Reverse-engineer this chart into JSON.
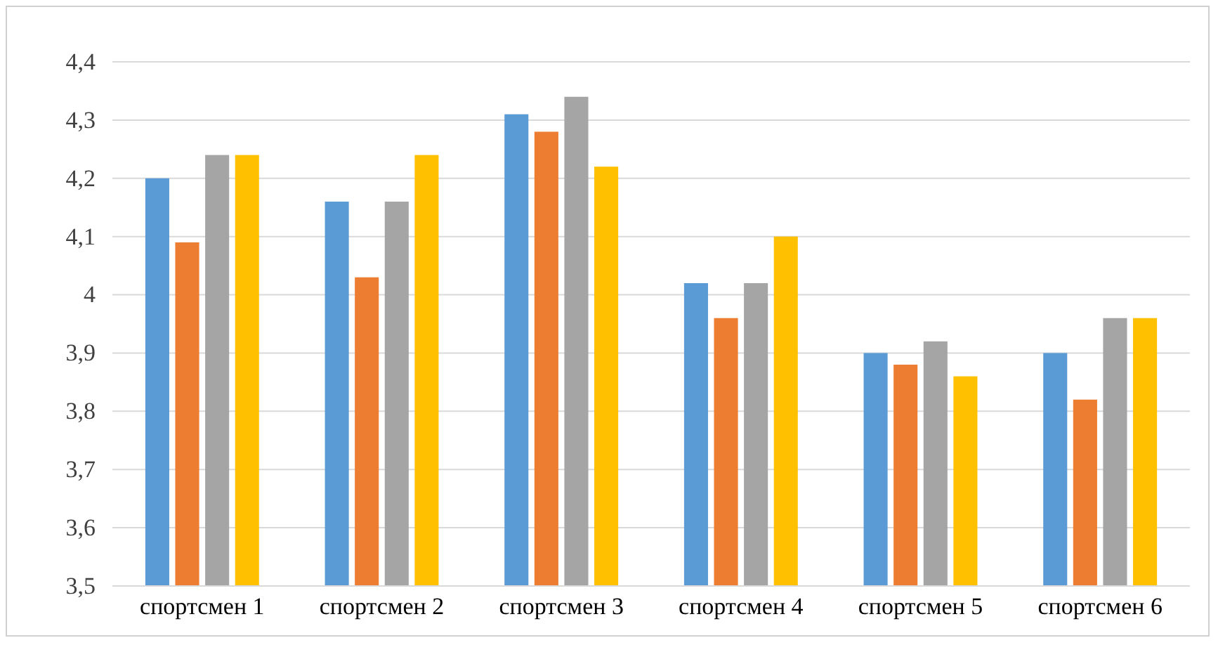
{
  "chart_data": {
    "type": "bar",
    "categories": [
      "спортсмен 1",
      "спортсмен 2",
      "спортсмен 3",
      "спортсмен 4",
      "спортсмен 5",
      "спортсмен 6"
    ],
    "series": [
      {
        "color": "#5b9bd5",
        "values": [
          4.2,
          4.16,
          4.31,
          4.02,
          3.9,
          3.9
        ]
      },
      {
        "color": "#ed7d31",
        "values": [
          4.09,
          4.03,
          4.28,
          3.96,
          3.88,
          3.82
        ]
      },
      {
        "color": "#a5a5a5",
        "values": [
          4.24,
          4.16,
          4.34,
          4.02,
          3.92,
          3.96
        ]
      },
      {
        "color": "#ffc000",
        "values": [
          4.24,
          4.24,
          4.22,
          4.1,
          3.86,
          3.96
        ]
      }
    ],
    "ylim": [
      3.5,
      4.4
    ],
    "yticks": [
      {
        "value": 3.5,
        "label": "3,5"
      },
      {
        "value": 3.6,
        "label": "3,6"
      },
      {
        "value": 3.7,
        "label": "3,7"
      },
      {
        "value": 3.8,
        "label": "3,8"
      },
      {
        "value": 3.9,
        "label": "3,9"
      },
      4,
      {
        "value": 4.1,
        "label": "4,1"
      },
      {
        "value": 4.2,
        "label": "4,2"
      },
      {
        "value": 4.3,
        "label": "4,3"
      },
      {
        "value": 4.4,
        "label": "4,4"
      }
    ],
    "grid": "y"
  }
}
